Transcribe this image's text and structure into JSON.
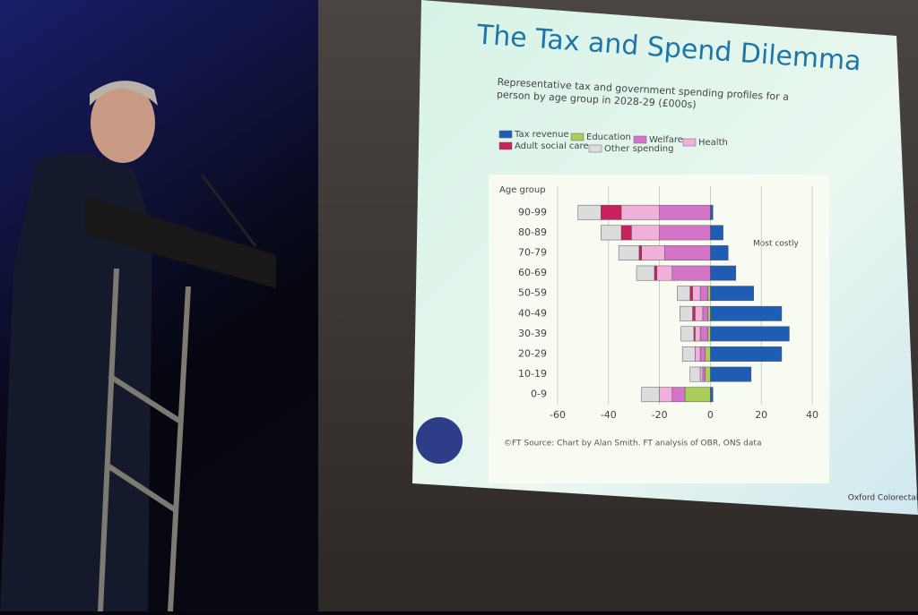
{
  "chart_data": {
    "type": "diverging-stacked-bar",
    "title": "The Tax and Spend Dilemma",
    "subtitle": "Representative tax and government spending profiles for a person by age group in 2028-29 (£000s)",
    "y_label": "Age group",
    "annotation": "Most costly",
    "source": "©FT Source: Chart by Alan Smith. FT analysis of OBR, ONS data",
    "categories": [
      "90-99",
      "80-89",
      "70-79",
      "60-69",
      "50-59",
      "40-49",
      "30-39",
      "20-29",
      "10-19",
      "0-9"
    ],
    "series": [
      {
        "name": "Tax revenue",
        "color": "#1f5db5",
        "values": [
          1,
          5,
          7,
          10,
          17,
          28,
          31,
          28,
          16,
          1
        ]
      },
      {
        "name": "Education",
        "color": "#a9cc5b",
        "values": [
          0,
          0,
          0,
          0,
          -1,
          -1,
          -1,
          -2,
          -2,
          -10
        ]
      },
      {
        "name": "Welfare",
        "color": "#d374c9",
        "values": [
          -20,
          -20,
          -18,
          -15,
          -3,
          -2,
          -3,
          -2,
          -1,
          -5
        ]
      },
      {
        "name": "Health",
        "color": "#f1b0da",
        "values": [
          -15,
          -11,
          -9,
          -6,
          -3,
          -3,
          -2,
          -2,
          -1,
          -5
        ]
      },
      {
        "name": "Adult social care",
        "color": "#c9215c",
        "values": [
          -8,
          -4,
          -1,
          -1,
          -1,
          -1,
          -0.5,
          0,
          0,
          0
        ]
      },
      {
        "name": "Other spending",
        "color": "#dcdcdc",
        "values": [
          -9,
          -8,
          -8,
          -7,
          -5,
          -5,
          -5,
          -5,
          -4,
          -7
        ]
      }
    ],
    "xlim": [
      -60,
      40
    ],
    "xticks": [
      -60,
      -40,
      -20,
      0,
      20,
      40
    ],
    "grid": true
  },
  "slide": {
    "logo_text": "Oxford Colorectal"
  }
}
